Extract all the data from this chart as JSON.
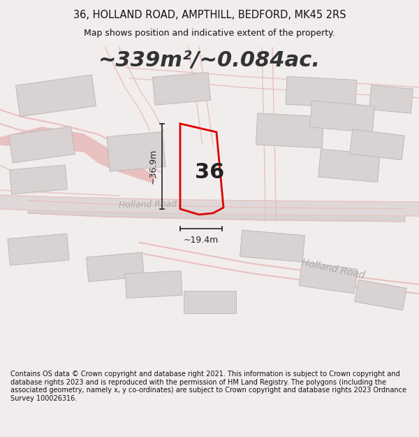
{
  "title_line1": "36, HOLLAND ROAD, AMPTHILL, BEDFORD, MK45 2RS",
  "title_line2": "Map shows position and indicative extent of the property.",
  "area_text": "~339m²/~0.084ac.",
  "label_36": "36",
  "dim_height": "~36.9m",
  "dim_width": "~19.4m",
  "road_label_center": "Holland Road",
  "road_label_lower": "Holland Road",
  "footer_text": "Contains OS data © Crown copyright and database right 2021. This information is subject to Crown copyright and database rights 2023 and is reproduced with the permission of HM Land Registry. The polygons (including the associated geometry, namely x, y co-ordinates) are subject to Crown copyright and database rights 2023 Ordnance Survey 100026316.",
  "bg_color": "#f2eded",
  "map_bg": "#f2eded",
  "plot_color": "#dd0000",
  "road_color": "#e8c0c0",
  "road_color2": "#c8c0c0",
  "building_fill": "#d8d2d2",
  "building_edge": "#c0b8b8",
  "dim_color": "#222222",
  "title_color": "#111111",
  "footer_color": "#111111",
  "road_text_color": "#b0a8a8",
  "figsize": [
    6.0,
    6.25
  ],
  "dpi": 100,
  "title_fontsize": 10.5,
  "subtitle_fontsize": 9,
  "area_fontsize": 22,
  "label_fontsize": 22,
  "dim_fontsize": 9,
  "road_fontsize": 9,
  "footer_fontsize": 7
}
